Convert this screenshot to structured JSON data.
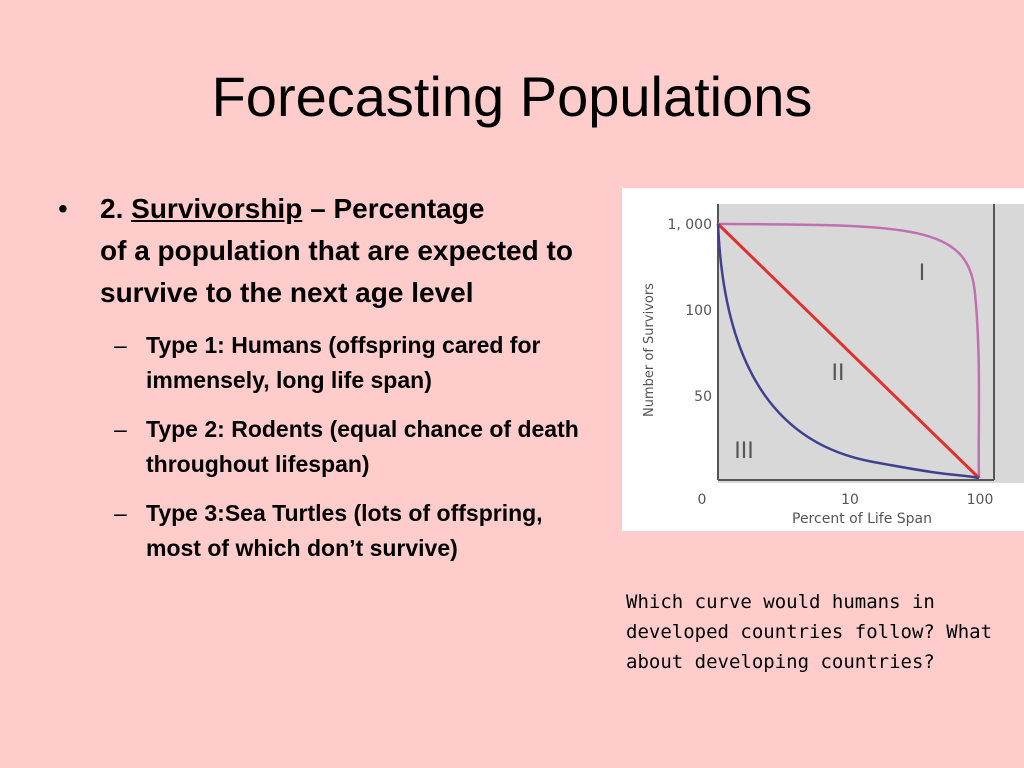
{
  "slide": {
    "title": "Forecasting Populations",
    "main_bullet": {
      "prefix": "2.",
      "term": "Survivorship",
      "definition_line1": " – Percentage",
      "definition_rest": "of a population that are expected to survive to the next age level"
    },
    "sub_bullets": [
      "Type 1: Humans (offspring cared for immensely, long life span)",
      "Type 2: Rodents (equal chance of death throughout lifespan)",
      "Type 3:Sea Turtles (lots of offspring, most of which don’t survive)"
    ],
    "caption": "Which curve would humans in developed countries follow? What about developing countries?"
  },
  "chart_data": {
    "type": "line",
    "xlabel": "Percent of Life Span",
    "ylabel": "Number of Survivors",
    "x_ticks": [
      "0",
      "10",
      "100"
    ],
    "y_ticks": [
      "1, 000",
      "100",
      "50"
    ],
    "series": [
      {
        "name": "I",
        "color": "#c070b0",
        "points": [
          [
            0,
            1000
          ],
          [
            10,
            990
          ],
          [
            50,
            950
          ],
          [
            85,
            800
          ],
          [
            94,
            500
          ],
          [
            98,
            150
          ],
          [
            100,
            0
          ]
        ]
      },
      {
        "name": "II",
        "color": "#e03030",
        "points": [
          [
            0,
            1000
          ],
          [
            100,
            0
          ]
        ]
      },
      {
        "name": "III",
        "color": "#404090",
        "points": [
          [
            0,
            1000
          ],
          [
            2,
            200
          ],
          [
            5,
            80
          ],
          [
            10,
            40
          ],
          [
            40,
            15
          ],
          [
            100,
            0
          ]
        ]
      }
    ],
    "colors": {
      "plot_bg": "#d8d8d8",
      "frame": "#555555",
      "chart_bg": "#ffffff"
    }
  }
}
